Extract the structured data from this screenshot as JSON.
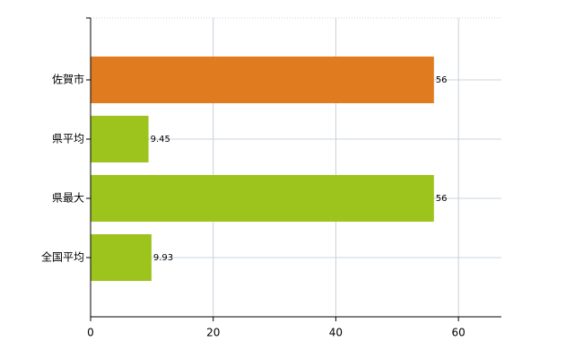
{
  "chart_data": {
    "type": "hbar",
    "categories": [
      "佐賀市",
      "県平均",
      "県最大",
      "全国平均"
    ],
    "values": [
      56,
      9.45,
      56,
      9.93
    ],
    "colors": [
      "#e07b20",
      "#9cc41c",
      "#9cc41c",
      "#9cc41c"
    ],
    "xlim": [
      0,
      67
    ],
    "xticks": [
      0,
      20,
      40,
      60
    ],
    "grid": true
  }
}
